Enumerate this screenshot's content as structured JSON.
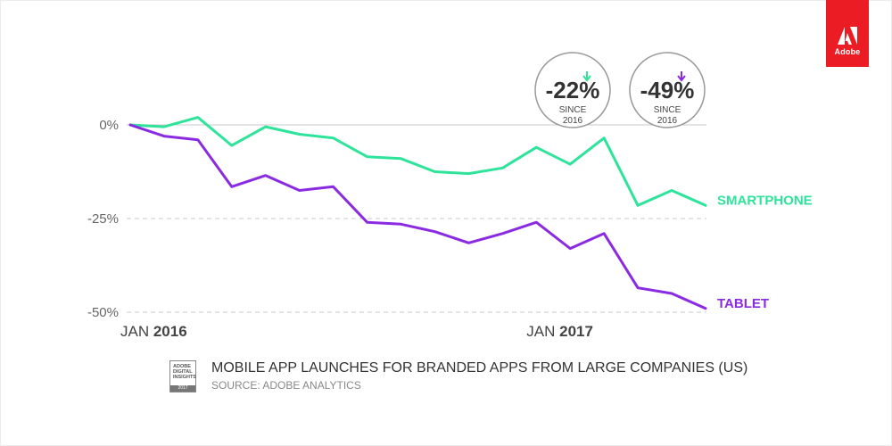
{
  "brand": {
    "logo_text": "Adobe",
    "color": "#ec1c24"
  },
  "chart_data": {
    "type": "line",
    "title": "MOBILE APP LAUNCHES FOR BRANDED APPS FROM LARGE COMPANIES (US)",
    "source": "SOURCE: ADOBE ANALYTICS",
    "ylabel": "",
    "ylim": [
      -50,
      0
    ],
    "y_ticks": [
      {
        "value": 0,
        "label": "0%"
      },
      {
        "value": -25,
        "label": "-25%"
      },
      {
        "value": -50,
        "label": "-50%"
      }
    ],
    "x_ticks": [
      {
        "index": 0,
        "month": "JAN",
        "year": "2016"
      },
      {
        "index": 12,
        "month": "JAN",
        "year": "2017"
      }
    ],
    "x_count": 19,
    "series": [
      {
        "name": "SMARTPHONE",
        "color": "#2ee39a",
        "values": [
          0,
          -0.5,
          2,
          -5.5,
          -0.5,
          -2.5,
          -3.5,
          -8.5,
          -9,
          -12.5,
          -13,
          -11.5,
          -6,
          -10.5,
          -3.5,
          -21.5,
          -17.5,
          -21.5
        ]
      },
      {
        "name": "TABLET",
        "color": "#8a2be2",
        "values": [
          0,
          -3,
          -4,
          -16.5,
          -13.5,
          -17.5,
          -16.5,
          -26,
          -26.5,
          -28.5,
          -31.5,
          -29,
          -26,
          -33,
          -29,
          -43.5,
          -45,
          -49
        ]
      }
    ],
    "annotations": [
      {
        "series": "SMARTPHONE",
        "value": "-22%",
        "line1": "SINCE",
        "line2": "2016",
        "color": "#2ee39a"
      },
      {
        "series": "TABLET",
        "value": "-49%",
        "line1": "SINCE",
        "line2": "2016",
        "color": "#8a2be2"
      }
    ]
  },
  "caption": {
    "icon_lines": [
      "ADOBE",
      "DIGITAL",
      "INSIGHTS"
    ],
    "icon_year": "2017"
  }
}
